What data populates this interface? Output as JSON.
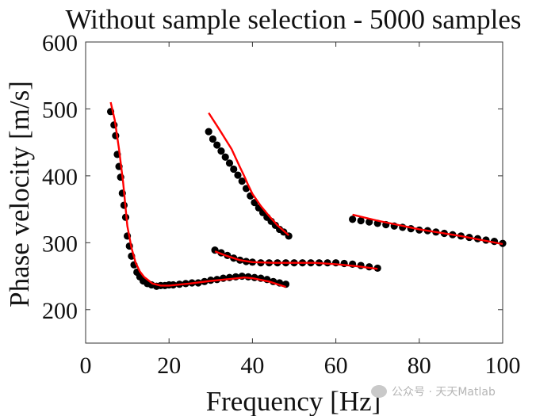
{
  "chart_data": {
    "type": "scatter",
    "title": "Without sample selection - 5000 samples",
    "xlabel": "Frequency [Hz]",
    "ylabel": "Phase velocity [m/s]",
    "xlim": [
      0,
      100
    ],
    "ylim": [
      150,
      600
    ],
    "xticks": [
      0,
      20,
      40,
      60,
      80,
      100
    ],
    "yticks": [
      200,
      300,
      400,
      500,
      600
    ],
    "grid": false,
    "colors": {
      "points": "#000000",
      "fit": "#ff0000",
      "axes": "#333333"
    },
    "series": [
      {
        "kind": "points",
        "x": [
          6,
          6.8,
          7.2,
          7.6,
          8,
          8.4,
          8.8,
          9.2,
          9.6,
          10,
          10.5,
          11,
          11.6,
          12.3,
          13,
          13.8,
          14.8,
          15.8,
          17,
          18,
          19,
          20,
          21,
          22.5,
          24,
          25.5,
          27,
          28.5,
          30,
          31.5,
          33,
          34.5,
          36,
          37.5,
          39,
          40.5,
          42,
          43.5,
          45,
          46.5,
          48
        ],
        "y": [
          496,
          476,
          460,
          432,
          414,
          398,
          374,
          356,
          338,
          310,
          295,
          280,
          267,
          256,
          249,
          243,
          239,
          237,
          235,
          236,
          236,
          237,
          237,
          238,
          239,
          240,
          240,
          242,
          244,
          245,
          247,
          248,
          249,
          250,
          249,
          248,
          247,
          245,
          242,
          240,
          238
        ]
      },
      {
        "kind": "points",
        "x": [
          29.5,
          30.5,
          31.5,
          32.5,
          33.5,
          34.5,
          35.5,
          36.5,
          37.5,
          38.5,
          39.5,
          40.5,
          41.5,
          42.5,
          43.5,
          44.5,
          45.5,
          46.5,
          47.5,
          48.7
        ],
        "y": [
          466,
          455,
          446,
          437,
          428,
          419,
          410,
          401,
          392,
          381,
          370,
          360,
          352,
          345,
          338,
          332,
          326,
          320,
          316,
          310
        ]
      },
      {
        "kind": "points",
        "x": [
          31,
          32.5,
          34,
          35.5,
          37,
          38.5,
          40,
          42,
          44,
          46,
          48,
          50,
          52,
          54,
          56,
          58,
          60,
          62,
          64,
          66,
          68,
          70
        ],
        "y": [
          289,
          285,
          281,
          277,
          274,
          272,
          271,
          270,
          270,
          270,
          270,
          270,
          270,
          270,
          270,
          270,
          270,
          269,
          268,
          266,
          264,
          262
        ]
      },
      {
        "kind": "points",
        "x": [
          64,
          66,
          68,
          70,
          72,
          74,
          76,
          78,
          80,
          82,
          84,
          86,
          88,
          90,
          92,
          94,
          96,
          98,
          100
        ],
        "y": [
          335,
          333,
          331,
          329,
          327,
          325,
          323,
          321,
          319,
          318,
          316,
          314,
          312,
          310,
          308,
          306,
          304,
          302,
          299
        ]
      },
      {
        "kind": "line",
        "x": [
          6,
          7,
          8,
          9,
          10,
          11,
          12,
          13,
          14,
          15,
          16,
          18,
          20,
          25,
          30,
          35,
          38,
          40,
          44,
          48
        ],
        "y": [
          510,
          483,
          440,
          390,
          325,
          292,
          270,
          257,
          249,
          244,
          239,
          236,
          236,
          239,
          243,
          246,
          248,
          247,
          242,
          234
        ]
      },
      {
        "kind": "line",
        "x": [
          29.5,
          32,
          35,
          37,
          38,
          39,
          40,
          42,
          44,
          46,
          48.7
        ],
        "y": [
          494,
          470,
          440,
          413,
          400,
          386,
          373,
          355,
          340,
          326,
          311
        ]
      },
      {
        "kind": "line",
        "x": [
          31,
          34,
          37,
          40,
          45,
          50,
          55,
          60,
          65,
          70
        ],
        "y": [
          287,
          280,
          274,
          271,
          270,
          270,
          270,
          268,
          265,
          261
        ]
      },
      {
        "kind": "line",
        "x": [
          64,
          70,
          80,
          90,
          100
        ],
        "y": [
          342,
          333,
          320,
          310,
          298
        ]
      }
    ]
  },
  "watermark": {
    "text": "公众号 · 天天Matlab",
    "icon": "wechat-icon"
  }
}
